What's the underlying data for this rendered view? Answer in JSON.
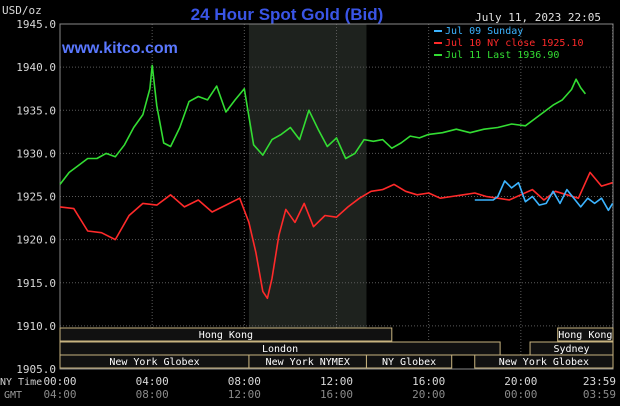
{
  "header": {
    "ylabel": "USD/oz",
    "title": "24 Hour Spot Gold (Bid)",
    "datetime": "July 11, 2023 22:05",
    "watermark": "www.kitco.com"
  },
  "colors": {
    "title": "#3a55e6",
    "watermark": "#5a78ff",
    "grid": "#5a5a5a",
    "axis_text": "#d8d8d8",
    "session_text": "#ffffff",
    "session_border": "#c8b480",
    "session_fill": "#111111",
    "nymex_shade": "#1e221e"
  },
  "chart_data": {
    "type": "line",
    "title": "24 Hour Spot Gold (Bid)",
    "ylabel": "USD/oz",
    "ylim": [
      1905,
      1945
    ],
    "yticks": [
      1905.0,
      1910.0,
      1915.0,
      1920.0,
      1925.0,
      1930.0,
      1935.0,
      1940.0,
      1945.0
    ],
    "ytick_labels": [
      "1905.0",
      "1910.0",
      "1915.0",
      "1920.0",
      "1925.0",
      "1930.0",
      "1935.0",
      "1940.0",
      "1945.0"
    ],
    "xlim": [
      0,
      24
    ],
    "xticks": [
      0,
      4,
      8,
      12,
      16,
      20,
      23.983
    ],
    "xtick_labels_ny": [
      "00:00",
      "04:00",
      "08:00",
      "12:00",
      "16:00",
      "20:00",
      "23:59"
    ],
    "xtick_labels_gmt": [
      "04:00",
      "08:00",
      "12:00",
      "16:00",
      "20:00",
      "00:00",
      "03:59"
    ],
    "xaxis_row_labels": [
      "NY Time",
      "GMT"
    ],
    "grid": true,
    "legend_position": "top-right",
    "shaded_region": {
      "label": "New York NYMEX",
      "x": [
        8.2,
        13.3
      ]
    },
    "series": [
      {
        "name": "Jul 09 Sunday",
        "color": "#3cb4ff",
        "x": [
          18.0,
          18.8,
          19.0,
          19.3,
          19.6,
          19.9,
          20.2,
          20.5,
          20.8,
          21.1,
          21.4,
          21.7,
          22.0,
          22.3,
          22.6,
          22.9,
          23.2,
          23.5,
          23.8,
          23.983
        ],
        "values": [
          1924.6,
          1924.6,
          1925.0,
          1926.8,
          1926.0,
          1926.6,
          1924.4,
          1925.0,
          1924.0,
          1924.2,
          1925.6,
          1924.2,
          1925.8,
          1924.8,
          1923.8,
          1924.8,
          1924.2,
          1924.8,
          1923.4,
          1924.2
        ]
      },
      {
        "name": "Jul 10 NY close 1925.10",
        "color": "#ff2a2a",
        "x": [
          0,
          0.6,
          1.2,
          1.8,
          2.4,
          3.0,
          3.6,
          4.2,
          4.8,
          5.4,
          6.0,
          6.6,
          7.2,
          7.8,
          8.2,
          8.5,
          8.8,
          9.0,
          9.2,
          9.5,
          9.8,
          10.2,
          10.6,
          11.0,
          11.5,
          12.0,
          12.5,
          13.0,
          13.5,
          14.0,
          14.5,
          15.0,
          15.5,
          16.0,
          16.5,
          17.0,
          17.5,
          18.0,
          18.5,
          19.0,
          19.5,
          20.0,
          20.5,
          21.0,
          21.5,
          22.0,
          22.5,
          23.0,
          23.5,
          23.983
        ],
        "values": [
          1923.8,
          1923.6,
          1921.0,
          1920.8,
          1920.0,
          1922.8,
          1924.2,
          1924.0,
          1925.2,
          1923.8,
          1924.6,
          1923.2,
          1924.0,
          1924.8,
          1922.0,
          1918.5,
          1914.0,
          1913.2,
          1915.5,
          1920.5,
          1923.5,
          1922.0,
          1924.2,
          1921.5,
          1922.8,
          1922.6,
          1923.8,
          1924.8,
          1925.6,
          1925.8,
          1926.4,
          1925.6,
          1925.2,
          1925.4,
          1924.8,
          1925.0,
          1925.2,
          1925.4,
          1925.0,
          1924.8,
          1924.6,
          1925.2,
          1925.8,
          1924.6,
          1925.6,
          1925.2,
          1924.8,
          1927.8,
          1926.2,
          1926.6
        ]
      },
      {
        "name": "Jul 11 Last 1936.90",
        "color": "#33dd33",
        "x": [
          0,
          0.4,
          0.8,
          1.2,
          1.6,
          2.0,
          2.4,
          2.8,
          3.2,
          3.6,
          3.9,
          4.0,
          4.2,
          4.5,
          4.8,
          5.2,
          5.6,
          6.0,
          6.4,
          6.8,
          7.2,
          7.6,
          8.0,
          8.4,
          8.8,
          9.2,
          9.6,
          10.0,
          10.4,
          10.8,
          11.2,
          11.6,
          12.0,
          12.4,
          12.8,
          13.2,
          13.6,
          14.0,
          14.4,
          14.8,
          15.2,
          15.6,
          16.0,
          16.6,
          17.2,
          17.8,
          18.4,
          19.0,
          19.6,
          20.2,
          20.6,
          21.0,
          21.4,
          21.8,
          22.2,
          22.4,
          22.6,
          22.8
        ],
        "values": [
          1926.4,
          1927.8,
          1928.6,
          1929.4,
          1929.4,
          1930.0,
          1929.6,
          1931.0,
          1933.0,
          1934.5,
          1937.5,
          1940.2,
          1935.5,
          1931.2,
          1930.8,
          1933.0,
          1936.0,
          1936.6,
          1936.2,
          1937.8,
          1934.8,
          1936.2,
          1937.5,
          1931.0,
          1929.8,
          1931.6,
          1932.2,
          1933.0,
          1931.6,
          1935.0,
          1932.8,
          1930.8,
          1931.8,
          1929.4,
          1930.0,
          1931.6,
          1931.4,
          1931.6,
          1930.6,
          1931.2,
          1932.0,
          1931.8,
          1932.2,
          1932.4,
          1932.8,
          1932.4,
          1932.8,
          1933.0,
          1933.4,
          1933.2,
          1934.0,
          1934.8,
          1935.6,
          1936.2,
          1937.4,
          1938.6,
          1937.6,
          1936.9
        ]
      }
    ]
  },
  "sessions": [
    {
      "label": "Hong Kong",
      "row": 0,
      "x": [
        0,
        14.4
      ]
    },
    {
      "label": "Hong Kong",
      "row": 0,
      "x": [
        21.6,
        24
      ]
    },
    {
      "label": "London",
      "row": 1,
      "x": [
        0,
        19.1
      ]
    },
    {
      "label": "Sydney",
      "row": 1,
      "x": [
        20.4,
        24
      ]
    },
    {
      "label": "New York Globex",
      "row": 2,
      "x": [
        0,
        8.2
      ]
    },
    {
      "label": "New York NYMEX",
      "row": 2,
      "x": [
        8.2,
        13.3
      ]
    },
    {
      "label": "NY Globex",
      "row": 2,
      "x": [
        13.3,
        17.0
      ]
    },
    {
      "label": "New York Globex",
      "row": 2,
      "x": [
        18.0,
        24
      ]
    }
  ]
}
